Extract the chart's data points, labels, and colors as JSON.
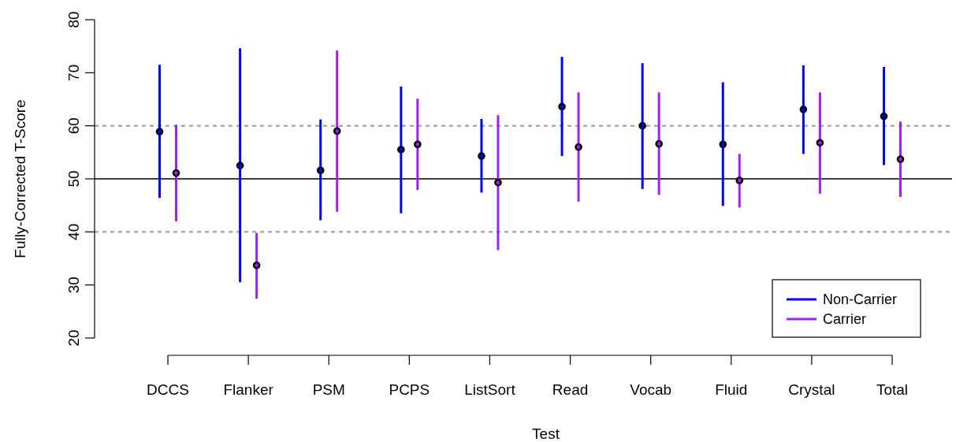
{
  "chart_data": {
    "type": "scatter",
    "xlabel": "Test",
    "ylabel": "Fully-Corrected T-Score",
    "categories": [
      "DCCS",
      "Flanker",
      "PSM",
      "PCPS",
      "ListSort",
      "Read",
      "Vocab",
      "Fluid",
      "Crystal",
      "Total"
    ],
    "ylim": [
      20,
      80
    ],
    "yticks": [
      20,
      30,
      40,
      50,
      60,
      70,
      80
    ],
    "marker": "circle",
    "legend": "bottom right",
    "series": [
      {
        "name": "Non-Carrier",
        "color": "#0000ff",
        "values": [
          58.9,
          52.5,
          51.6,
          55.5,
          54.3,
          63.6,
          60.0,
          56.5,
          63.1,
          61.8
        ],
        "errors": [
          [
            46.4,
            71.5
          ],
          [
            30.5,
            74.6
          ],
          [
            42.2,
            61.2
          ],
          [
            43.5,
            67.4
          ],
          [
            47.4,
            61.3
          ],
          [
            54.3,
            73.0
          ],
          [
            48.1,
            71.8
          ],
          [
            44.9,
            68.2
          ],
          [
            54.7,
            71.4
          ],
          [
            52.6,
            71.1
          ]
        ]
      },
      {
        "name": "Carrier",
        "color": "#a020f0",
        "values": [
          51.1,
          33.7,
          59.0,
          56.5,
          49.3,
          56.0,
          56.6,
          49.7,
          56.8,
          53.7
        ],
        "errors": [
          [
            42.0,
            60.2
          ],
          [
            27.4,
            39.8
          ],
          [
            43.8,
            74.2
          ],
          [
            47.9,
            65.1
          ],
          [
            36.6,
            62.0
          ],
          [
            45.7,
            66.3
          ],
          [
            47.0,
            66.3
          ],
          [
            44.6,
            54.7
          ],
          [
            47.2,
            66.3
          ],
          [
            46.6,
            60.8
          ]
        ]
      }
    ],
    "ref_lines": [
      {
        "axis": "y",
        "value": 50,
        "color": "#000000",
        "line_style": "solid"
      },
      {
        "axis": "y",
        "value": 60,
        "color": "#aaaaaa",
        "line_style": "dashed"
      },
      {
        "axis": "y",
        "value": 40,
        "color": "#aaaaaa",
        "line_style": "dashed"
      }
    ]
  }
}
